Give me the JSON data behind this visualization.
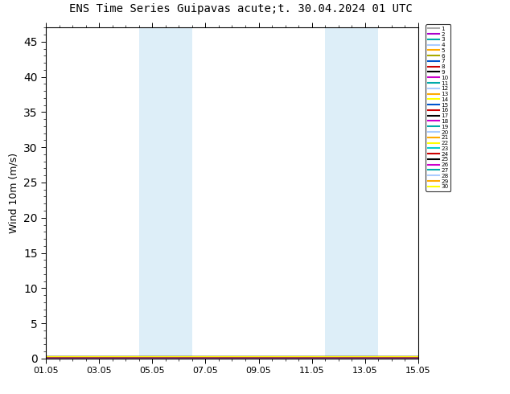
{
  "title_left": "ENS Time Series Guipavas",
  "title_right": "acute;t. 30.04.2024 01 UTC",
  "ylabel": "Wind 10m (m/s)",
  "ylim": [
    0,
    47
  ],
  "yticks": [
    0,
    5,
    10,
    15,
    20,
    25,
    30,
    35,
    40,
    45
  ],
  "xtick_positions": [
    0,
    2,
    4,
    6,
    8,
    10,
    12,
    14
  ],
  "xtick_labels": [
    "01.05",
    "03.05",
    "05.05",
    "07.05",
    "09.05",
    "11.05",
    "13.05",
    "15.05"
  ],
  "xlim": [
    0,
    14
  ],
  "shaded_regions": [
    [
      3.5,
      4.5
    ],
    [
      4.5,
      5.5
    ],
    [
      10.5,
      11.5
    ],
    [
      11.5,
      12.5
    ]
  ],
  "legend_colors": [
    "#aaaaaa",
    "#aa00cc",
    "#00aaaa",
    "#aaccff",
    "#ffaa00",
    "#aaaa00",
    "#0055cc",
    "#cc0000",
    "#000000",
    "#cc00cc",
    "#00aaaa",
    "#aaccff",
    "#ffaa00",
    "#ffff00",
    "#0055cc",
    "#cc0000",
    "#000000",
    "#cc00cc",
    "#00aaaa",
    "#aaccff",
    "#ffaa00",
    "#ffff00",
    "#00cccc",
    "#cc0000",
    "#000000",
    "#cc00cc",
    "#00aaaa",
    "#aaccff",
    "#ffaa00",
    "#ffff00"
  ],
  "n_members": 30,
  "background_color": "#ffffff",
  "shade_color": "#ddeef8",
  "figwidth": 6.34,
  "figheight": 4.9,
  "dpi": 100
}
